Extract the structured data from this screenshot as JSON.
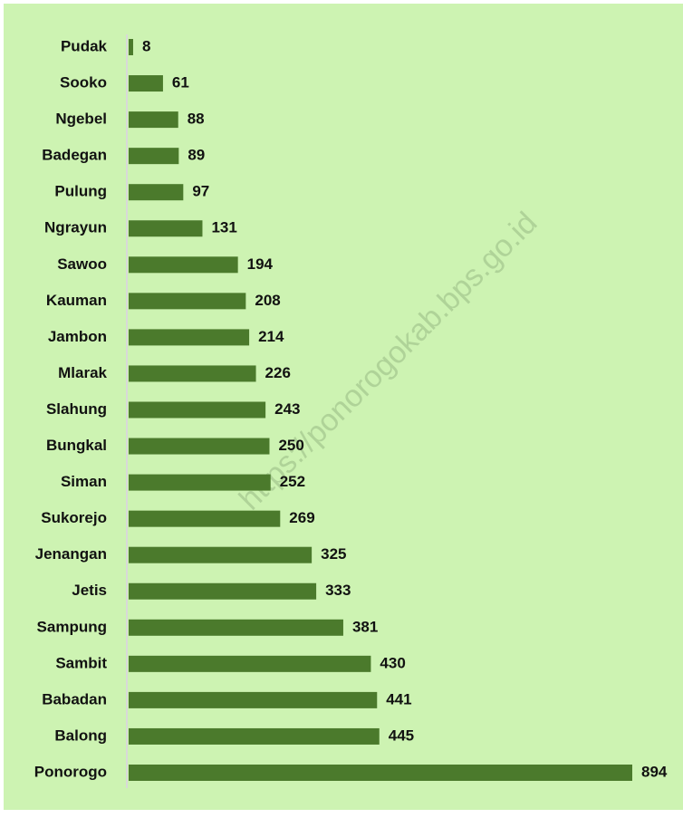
{
  "chart_data": {
    "type": "bar",
    "orientation": "horizontal",
    "watermark": "https://ponorogokab.bps.go.id",
    "categories": [
      "Pudak",
      "Sooko",
      "Ngebel",
      "Badegan",
      "Pulung",
      "Ngrayun",
      "Sawoo",
      "Kauman",
      "Jambon",
      "Mlarak",
      "Slahung",
      "Bungkal",
      "Siman",
      "Sukorejo",
      "Jenangan",
      "Jetis",
      "Sampung",
      "Sambit",
      "Babadan",
      "Balong",
      "Ponorogo"
    ],
    "values": [
      8,
      61,
      88,
      89,
      97,
      131,
      194,
      208,
      214,
      226,
      243,
      250,
      252,
      269,
      325,
      333,
      381,
      430,
      441,
      445,
      894
    ],
    "color": "#4b7a2c"
  }
}
